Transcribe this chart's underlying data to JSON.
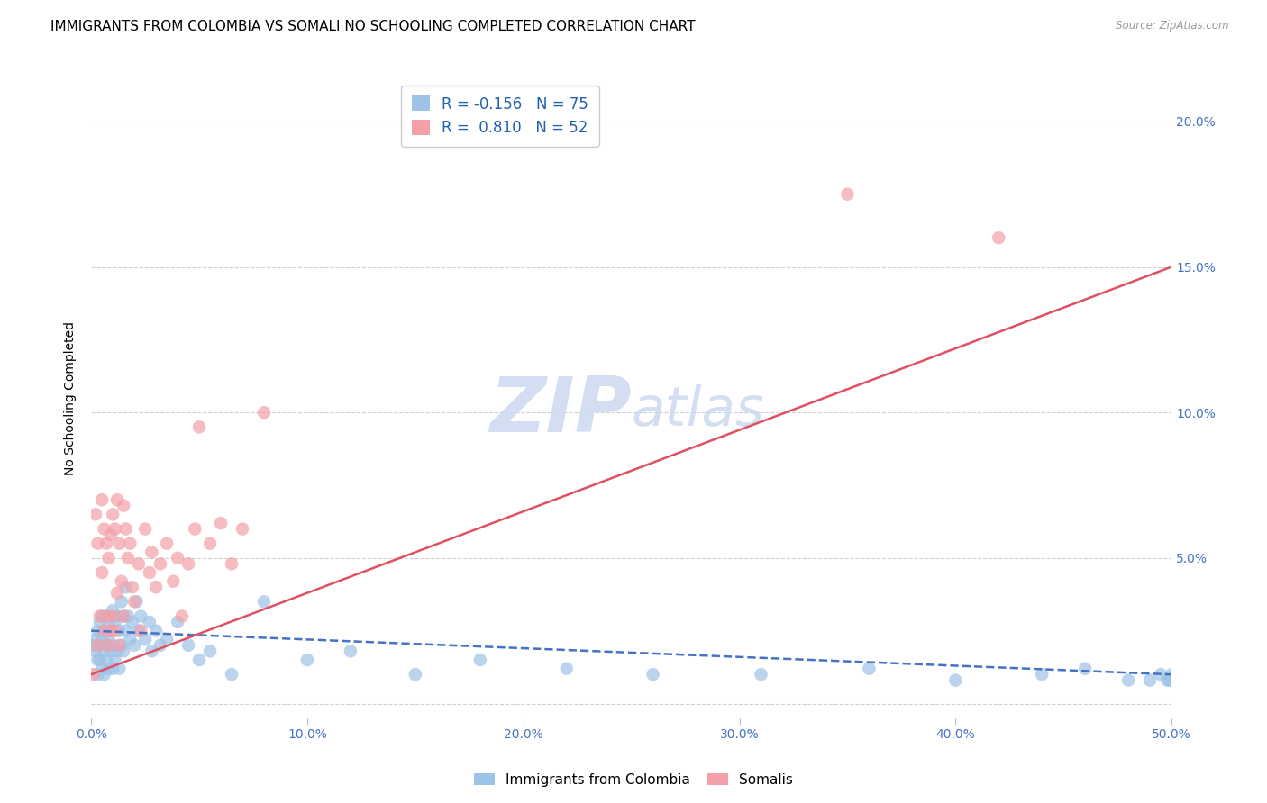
{
  "title": "IMMIGRANTS FROM COLOMBIA VS SOMALI NO SCHOOLING COMPLETED CORRELATION CHART",
  "source": "Source: ZipAtlas.com",
  "ylabel": "No Schooling Completed",
  "xlim": [
    0.0,
    0.5
  ],
  "ylim": [
    -0.005,
    0.215
  ],
  "xticks": [
    0.0,
    0.1,
    0.2,
    0.3,
    0.4,
    0.5
  ],
  "xtick_labels": [
    "0.0%",
    "10.0%",
    "20.0%",
    "30.0%",
    "40.0%",
    "50.0%"
  ],
  "yticks": [
    0.0,
    0.05,
    0.1,
    0.15,
    0.2
  ],
  "ytick_labels": [
    "",
    "5.0%",
    "10.0%",
    "15.0%",
    "20.0%"
  ],
  "colombia_R": -0.156,
  "colombia_N": 75,
  "somali_R": 0.81,
  "somali_N": 52,
  "colombia_color": "#9dc3e6",
  "somali_color": "#f4a0a8",
  "trendline_colombia_color": "#4472c4",
  "trendline_somali_color": "#e05060",
  "watermark_color": "#ccd9f0",
  "colombia_points_x": [
    0.001,
    0.002,
    0.002,
    0.003,
    0.003,
    0.003,
    0.004,
    0.004,
    0.004,
    0.005,
    0.005,
    0.005,
    0.006,
    0.006,
    0.006,
    0.007,
    0.007,
    0.007,
    0.008,
    0.008,
    0.008,
    0.009,
    0.009,
    0.01,
    0.01,
    0.01,
    0.011,
    0.011,
    0.012,
    0.012,
    0.013,
    0.013,
    0.014,
    0.014,
    0.015,
    0.015,
    0.016,
    0.016,
    0.017,
    0.018,
    0.019,
    0.02,
    0.021,
    0.022,
    0.023,
    0.025,
    0.027,
    0.028,
    0.03,
    0.032,
    0.035,
    0.04,
    0.045,
    0.05,
    0.055,
    0.065,
    0.08,
    0.1,
    0.12,
    0.15,
    0.18,
    0.22,
    0.26,
    0.31,
    0.36,
    0.4,
    0.44,
    0.46,
    0.48,
    0.49,
    0.495,
    0.498,
    0.499,
    0.5,
    0.5
  ],
  "colombia_points_y": [
    0.02,
    0.022,
    0.018,
    0.025,
    0.015,
    0.01,
    0.028,
    0.02,
    0.015,
    0.03,
    0.022,
    0.012,
    0.025,
    0.018,
    0.01,
    0.03,
    0.02,
    0.015,
    0.028,
    0.022,
    0.012,
    0.025,
    0.018,
    0.032,
    0.02,
    0.012,
    0.028,
    0.015,
    0.03,
    0.018,
    0.025,
    0.012,
    0.035,
    0.02,
    0.03,
    0.018,
    0.04,
    0.025,
    0.03,
    0.022,
    0.028,
    0.02,
    0.035,
    0.025,
    0.03,
    0.022,
    0.028,
    0.018,
    0.025,
    0.02,
    0.022,
    0.028,
    0.02,
    0.015,
    0.018,
    0.01,
    0.035,
    0.015,
    0.018,
    0.01,
    0.015,
    0.012,
    0.01,
    0.01,
    0.012,
    0.008,
    0.01,
    0.012,
    0.008,
    0.008,
    0.01,
    0.008,
    0.008,
    0.008,
    0.01
  ],
  "somali_points_x": [
    0.001,
    0.002,
    0.003,
    0.003,
    0.004,
    0.005,
    0.005,
    0.006,
    0.006,
    0.007,
    0.007,
    0.008,
    0.008,
    0.009,
    0.009,
    0.01,
    0.01,
    0.011,
    0.011,
    0.012,
    0.012,
    0.013,
    0.013,
    0.014,
    0.015,
    0.015,
    0.016,
    0.017,
    0.018,
    0.019,
    0.02,
    0.022,
    0.023,
    0.025,
    0.027,
    0.028,
    0.03,
    0.032,
    0.035,
    0.038,
    0.04,
    0.042,
    0.045,
    0.048,
    0.05,
    0.055,
    0.06,
    0.065,
    0.07,
    0.08,
    0.35,
    0.42
  ],
  "somali_points_y": [
    0.01,
    0.065,
    0.055,
    0.02,
    0.03,
    0.07,
    0.045,
    0.06,
    0.025,
    0.055,
    0.03,
    0.05,
    0.02,
    0.058,
    0.025,
    0.065,
    0.03,
    0.06,
    0.025,
    0.07,
    0.038,
    0.055,
    0.02,
    0.042,
    0.068,
    0.03,
    0.06,
    0.05,
    0.055,
    0.04,
    0.035,
    0.048,
    0.025,
    0.06,
    0.045,
    0.052,
    0.04,
    0.048,
    0.055,
    0.042,
    0.05,
    0.03,
    0.048,
    0.06,
    0.095,
    0.055,
    0.062,
    0.048,
    0.06,
    0.1,
    0.175,
    0.16
  ],
  "colombia_trend_x": [
    0.0,
    0.5
  ],
  "colombia_trend_y": [
    0.025,
    0.01
  ],
  "somali_trend_x": [
    0.0,
    0.5
  ],
  "somali_trend_y": [
    0.01,
    0.15
  ],
  "grid_color": "#d0d0d0",
  "background_color": "#ffffff",
  "title_fontsize": 11,
  "axis_label_fontsize": 10,
  "tick_fontsize": 10,
  "legend_fontsize": 11
}
